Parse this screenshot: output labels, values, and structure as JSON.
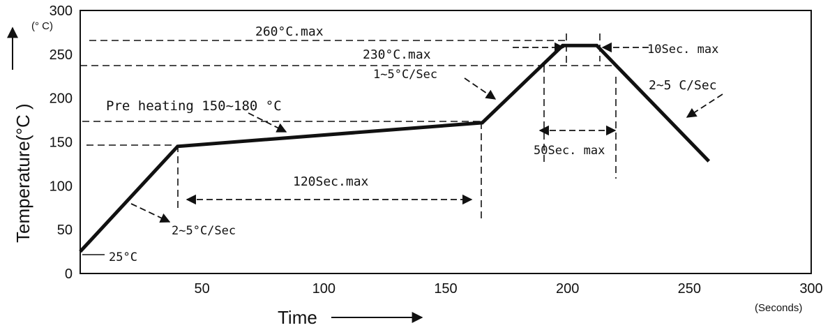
{
  "chart_data": {
    "type": "line",
    "title": "",
    "xlabel": "Time",
    "x_unit": "(Seconds)",
    "ylabel": "Temperature(°C )",
    "y_unit": "(° C)",
    "xlim": [
      0,
      300
    ],
    "ylim": [
      0,
      300
    ],
    "x_ticks": [
      50,
      100,
      150,
      200,
      250,
      300
    ],
    "y_ticks": [
      0,
      50,
      100,
      150,
      200,
      250,
      300
    ],
    "grid": false,
    "series": [
      {
        "x": [
          0,
          40,
          165,
          198,
          212,
          258
        ],
        "y": [
          25,
          145,
          172,
          260,
          260,
          128
        ]
      }
    ],
    "annotations": {
      "start_temp": "25°C",
      "ramp1": "2~5°C/Sec",
      "preheat": "Pre heating 150~180 °C",
      "preheat_time": "120Sec.max",
      "ramp2": "1~5°C/Sec",
      "peak": "260°C.max",
      "liquidus": "230°C.max",
      "peak_time": "10Sec. max",
      "liquidus_time": "50Sec. max",
      "cooling": "2~5 C/Sec"
    }
  }
}
